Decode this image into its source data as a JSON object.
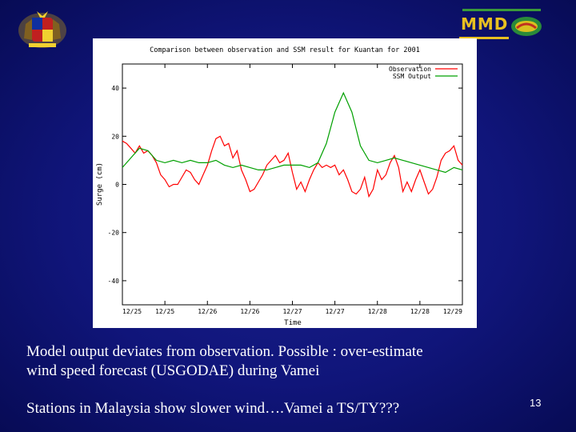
{
  "slide": {
    "logo_text": "MMD",
    "caption_line1": "Model output deviates from observation. Possible : over-estimate",
    "caption_line2": "wind speed forecast (USGODAE) during Vamei",
    "caption_line3": "Stations in Malaysia show slower wind….Vamei a TS/TY???",
    "page_number": "13",
    "background_color": "#10157a"
  },
  "chart_data": {
    "type": "line",
    "title": "Comparison between observation and SSM result for Kuantan for 2001",
    "xlabel": "Time",
    "ylabel": "Surge (cm)",
    "ylim": [
      -50,
      50
    ],
    "xlim": [
      0,
      8
    ],
    "xtick_labels": [
      "12/25",
      "12/25",
      "12/26",
      "12/26",
      "12/27",
      "12/27",
      "12/28",
      "12/28",
      "12/29"
    ],
    "yticks": [
      40,
      20,
      0,
      -20,
      -40
    ],
    "grid": false,
    "legend_position": "top-right",
    "series": [
      {
        "name": "Observation",
        "color": "#ff0000",
        "x": [
          0.0,
          0.1,
          0.2,
          0.3,
          0.4,
          0.5,
          0.6,
          0.7,
          0.8,
          0.9,
          1.0,
          1.1,
          1.2,
          1.3,
          1.4,
          1.5,
          1.6,
          1.7,
          1.8,
          1.9,
          2.0,
          2.1,
          2.2,
          2.3,
          2.4,
          2.5,
          2.6,
          2.7,
          2.8,
          2.9,
          3.0,
          3.1,
          3.2,
          3.3,
          3.4,
          3.5,
          3.6,
          3.7,
          3.8,
          3.9,
          4.0,
          4.1,
          4.2,
          4.3,
          4.4,
          4.5,
          4.6,
          4.7,
          4.8,
          4.9,
          5.0,
          5.1,
          5.2,
          5.3,
          5.4,
          5.5,
          5.6,
          5.7,
          5.8,
          5.9,
          6.0,
          6.1,
          6.2,
          6.3,
          6.4,
          6.5,
          6.6,
          6.7,
          6.8,
          6.9,
          7.0,
          7.1,
          7.2,
          7.3,
          7.4,
          7.5,
          7.6,
          7.7,
          7.8,
          7.9,
          8.0
        ],
        "values": [
          18,
          17,
          15,
          13,
          16,
          13,
          14,
          12,
          9,
          4,
          2,
          -1,
          0,
          0,
          3,
          6,
          5,
          2,
          0,
          4,
          8,
          14,
          19,
          20,
          16,
          17,
          11,
          14,
          6,
          2,
          -3,
          -2,
          1,
          4,
          8,
          10,
          12,
          9,
          10,
          13,
          5,
          -2,
          1,
          -3,
          2,
          6,
          9,
          7,
          8,
          7,
          8,
          4,
          6,
          2,
          -3,
          -4,
          -2,
          3,
          -5,
          -2,
          6,
          2,
          4,
          9,
          12,
          7,
          -3,
          1,
          -3,
          2,
          6,
          1,
          -4,
          -2,
          3,
          10,
          13,
          14,
          16,
          10,
          8
        ]
      },
      {
        "name": "SSM Output",
        "color": "#00a000",
        "x": [
          0.0,
          0.2,
          0.4,
          0.6,
          0.8,
          1.0,
          1.2,
          1.4,
          1.6,
          1.8,
          2.0,
          2.2,
          2.4,
          2.6,
          2.8,
          3.0,
          3.2,
          3.4,
          3.6,
          3.8,
          4.0,
          4.2,
          4.4,
          4.6,
          4.8,
          5.0,
          5.2,
          5.4,
          5.6,
          5.8,
          6.0,
          6.2,
          6.4,
          6.6,
          6.8,
          7.0,
          7.2,
          7.4,
          7.6,
          7.8,
          8.0
        ],
        "values": [
          7,
          11,
          15,
          14,
          10,
          9,
          10,
          9,
          10,
          9,
          9,
          10,
          8,
          7,
          8,
          7,
          6,
          6,
          7,
          8,
          8,
          8,
          7,
          9,
          17,
          30,
          38,
          30,
          16,
          10,
          9,
          10,
          11,
          10,
          9,
          8,
          7,
          6,
          5,
          7,
          6
        ]
      }
    ]
  }
}
